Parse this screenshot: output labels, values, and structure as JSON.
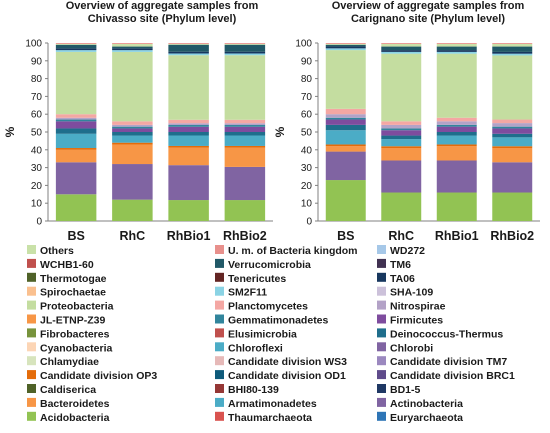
{
  "chart_data": [
    {
      "type": "bar",
      "stacked": true,
      "title": "Overview of aggregate samples from Chivasso site (Phylum level)",
      "title_lines": [
        "Overview of aggregate samples from",
        "Chivasso site (Phylum level)"
      ],
      "ylabel": "%",
      "ylim": [
        0,
        100
      ],
      "yticks": [
        0,
        10,
        20,
        30,
        40,
        50,
        60,
        70,
        80,
        90,
        100
      ],
      "categories": [
        "BS",
        "RhC",
        "RhBio1",
        "RhBio2"
      ],
      "segments": [
        {
          "name": "Acidobacteria",
          "color": "#92c353",
          "values": [
            15,
            12,
            12,
            12
          ]
        },
        {
          "name": "Actinobacteria",
          "color": "#8064a2",
          "values": [
            18,
            20,
            20,
            19
          ]
        },
        {
          "name": "Bacteroidetes",
          "color": "#f79646",
          "values": [
            7,
            11,
            10,
            11
          ]
        },
        {
          "name": "Candidate division OP3",
          "color": "#e46c0a",
          "values": [
            1,
            1,
            1,
            1
          ]
        },
        {
          "name": "Chloroflexi",
          "color": "#4bacc6",
          "values": [
            8,
            4,
            6,
            6
          ]
        },
        {
          "name": "Deinococcus-Thermus",
          "color": "#1f6e8c",
          "values": [
            3,
            2,
            2,
            2
          ]
        },
        {
          "name": "Firmicutes",
          "color": "#7e4c9e",
          "values": [
            4,
            2,
            3,
            3
          ]
        },
        {
          "name": "Gemmatimonadetes",
          "color": "#31859c",
          "values": [
            1,
            1,
            1,
            1
          ]
        },
        {
          "name": "Nitrospirae",
          "color": "#b3a2c7",
          "values": [
            1,
            1,
            1,
            1
          ]
        },
        {
          "name": "Planctomycetes",
          "color": "#f4a7a3",
          "values": [
            2,
            2,
            2,
            2
          ]
        },
        {
          "name": "Proteobacteria",
          "color": "#c4dda0",
          "values": [
            35,
            39,
            37,
            37
          ]
        },
        {
          "name": "SM2F11",
          "color": "#8ad3e4",
          "values": [
            1,
            1,
            1,
            1
          ]
        },
        {
          "name": "TA06",
          "color": "#17375e",
          "values": [
            1,
            1,
            1,
            1
          ]
        },
        {
          "name": "Verrucomicrobia",
          "color": "#215967",
          "values": [
            2,
            1,
            4,
            4
          ]
        },
        {
          "name": "Others",
          "color": "#c9e1a8",
          "values": [
            0.5,
            1.5,
            0.5,
            0.5
          ]
        },
        {
          "name": "U. m. of Bacteria kingdom",
          "color": "#e8908c",
          "values": [
            0.5,
            0.5,
            0.5,
            0.5
          ]
        }
      ]
    },
    {
      "type": "bar",
      "stacked": true,
      "title": "Overview of aggregate samples from Carignano site (Phylum level)",
      "title_lines": [
        "Overview of aggregate samples from",
        "Carignano site (Phylum level)"
      ],
      "ylabel": "%",
      "ylim": [
        0,
        100
      ],
      "yticks": [
        0,
        10,
        20,
        30,
        40,
        50,
        60,
        70,
        80,
        90,
        100
      ],
      "categories": [
        "BS",
        "RhC",
        "RhBio1",
        "RhBio2"
      ],
      "segments": [
        {
          "name": "Acidobacteria",
          "color": "#92c353",
          "values": [
            23,
            16,
            16,
            16
          ]
        },
        {
          "name": "Actinobacteria",
          "color": "#8064a2",
          "values": [
            16,
            18,
            18,
            17
          ]
        },
        {
          "name": "Bacteroidetes",
          "color": "#f79646",
          "values": [
            3,
            7,
            8,
            8
          ]
        },
        {
          "name": "Candidate division OP3",
          "color": "#e46c0a",
          "values": [
            1,
            1,
            1,
            1
          ]
        },
        {
          "name": "Chloroflexi",
          "color": "#4bacc6",
          "values": [
            8,
            4,
            5,
            5
          ]
        },
        {
          "name": "Deinococcus-Thermus",
          "color": "#1f6e8c",
          "values": [
            3,
            2,
            2,
            2
          ]
        },
        {
          "name": "Firmicutes",
          "color": "#7e4c9e",
          "values": [
            3,
            3,
            3,
            3
          ]
        },
        {
          "name": "Gemmatimonadetes",
          "color": "#31859c",
          "values": [
            1,
            1,
            1,
            1
          ]
        },
        {
          "name": "Nitrospirae",
          "color": "#b3a2c7",
          "values": [
            2,
            2,
            2,
            2
          ]
        },
        {
          "name": "Planctomycetes",
          "color": "#f4a7a3",
          "values": [
            3,
            2,
            2,
            2
          ]
        },
        {
          "name": "Proteobacteria",
          "color": "#c4dda0",
          "values": [
            33,
            38,
            36,
            36
          ]
        },
        {
          "name": "SM2F11",
          "color": "#8ad3e4",
          "values": [
            1,
            1,
            1,
            1
          ]
        },
        {
          "name": "TA06",
          "color": "#17375e",
          "values": [
            1,
            1,
            1,
            1
          ]
        },
        {
          "name": "Verrucomicrobia",
          "color": "#215967",
          "values": [
            1,
            2,
            2,
            3
          ]
        },
        {
          "name": "Others",
          "color": "#c9e1a8",
          "values": [
            0.5,
            1.5,
            1.5,
            1.5
          ]
        },
        {
          "name": "U. m. of Bacteria kingdom",
          "color": "#e8908c",
          "values": [
            0.5,
            0.5,
            0.5,
            0.5
          ]
        }
      ]
    }
  ],
  "legend": [
    {
      "label": "Others",
      "color": "#c9e1a8"
    },
    {
      "label": "U. m. of Bacteria kingdom",
      "color": "#e8908c"
    },
    {
      "label": "WD272",
      "color": "#a6c8e8"
    },
    {
      "label": "WCHB1-60",
      "color": "#c0504d"
    },
    {
      "label": "Verrucomicrobia",
      "color": "#215967"
    },
    {
      "label": "TM6",
      "color": "#403151"
    },
    {
      "label": "Thermotogae",
      "color": "#4f6228"
    },
    {
      "label": "Tenericutes",
      "color": "#632523"
    },
    {
      "label": "TA06",
      "color": "#17375e"
    },
    {
      "label": "Spirochaetae",
      "color": "#fac08f"
    },
    {
      "label": "SM2F11",
      "color": "#8ad3e4"
    },
    {
      "label": "SHA-109",
      "color": "#ccc1da"
    },
    {
      "label": "Proteobacteria",
      "color": "#c4dda0"
    },
    {
      "label": "Planctomycetes",
      "color": "#f4a7a3"
    },
    {
      "label": "Nitrospirae",
      "color": "#b3a2c7"
    },
    {
      "label": "JL-ETNP-Z39",
      "color": "#f79646"
    },
    {
      "label": "Gemmatimonadetes",
      "color": "#31859c"
    },
    {
      "label": "Firmicutes",
      "color": "#7e4c9e"
    },
    {
      "label": "Fibrobacteres",
      "color": "#77933c"
    },
    {
      "label": "Elusimicrobia",
      "color": "#c0504d"
    },
    {
      "label": "Deinococcus-Thermus",
      "color": "#1f6e8c"
    },
    {
      "label": "Cyanobacteria",
      "color": "#fcd5b5"
    },
    {
      "label": "Chloroflexi",
      "color": "#4bacc6"
    },
    {
      "label": "Chlorobi",
      "color": "#8064a2"
    },
    {
      "label": "Chlamydiae",
      "color": "#d7e4bd"
    },
    {
      "label": "Candidate division WS3",
      "color": "#e6b9b8"
    },
    {
      "label": "Candidate division TM7",
      "color": "#9b88bf"
    },
    {
      "label": "Candidate division OP3",
      "color": "#e46c0a"
    },
    {
      "label": "Candidate division OD1",
      "color": "#0e5a7a"
    },
    {
      "label": "Candidate division BRC1",
      "color": "#5f4b8b"
    },
    {
      "label": "Caldiserica",
      "color": "#4f6228"
    },
    {
      "label": "BHI80-139",
      "color": "#953735"
    },
    {
      "label": "BD1-5",
      "color": "#1f3864"
    },
    {
      "label": "Bacteroidetes",
      "color": "#f79646"
    },
    {
      "label": "Armatimonadetes",
      "color": "#4bacc6"
    },
    {
      "label": "Actinobacteria",
      "color": "#8064a2"
    },
    {
      "label": "Acidobacteria",
      "color": "#92c353"
    },
    {
      "label": "Thaumarchaeota",
      "color": "#d9534f"
    },
    {
      "label": "Euryarchaeota",
      "color": "#2e75b6"
    }
  ]
}
